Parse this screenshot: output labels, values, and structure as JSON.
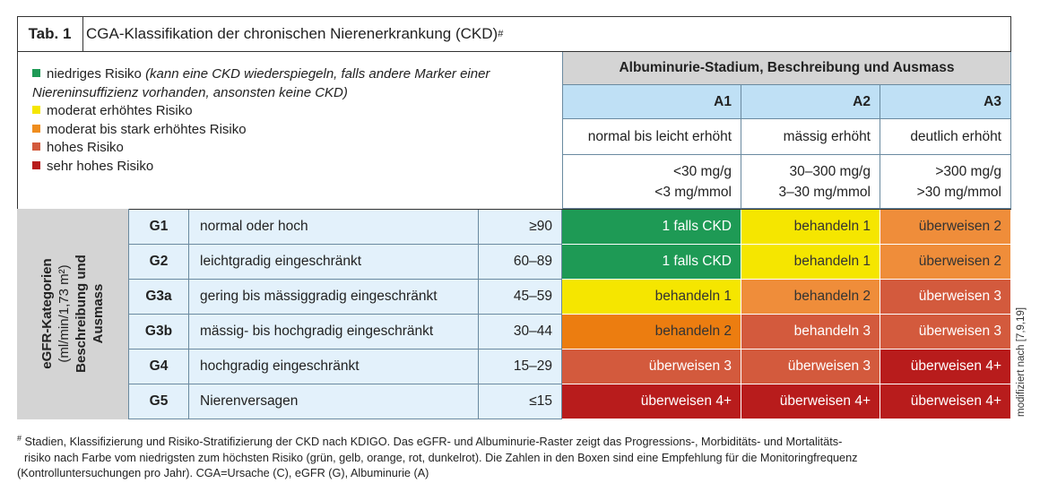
{
  "table": {
    "label": "Tab. 1",
    "title": "CGA-Klassifikation der chronischen Nierenerkrankung (CKD)",
    "title_mark": "#"
  },
  "legend": [
    {
      "text": "niedriges Risiko",
      "note": "(kann eine CKD wiederspiegeln, falls andere Marker einer Niereninsuffizienz vorhanden, ansonsten keine CKD)",
      "color": "#1e9a55"
    },
    {
      "text": "moderat erhöhtes Risiko",
      "note": "",
      "color": "#f5e600"
    },
    {
      "text": "moderat bis stark erhöhtes Risiko",
      "note": "",
      "color": "#ef8d1e"
    },
    {
      "text": "hohes Risiko",
      "note": "",
      "color": "#d35a3d"
    },
    {
      "text": "sehr hohes Risiko",
      "note": "",
      "color": "#b81c1c"
    }
  ],
  "albuminuria": {
    "header": "Albuminurie-Stadium, Beschreibung und Ausmass",
    "columns": [
      {
        "stage": "A1",
        "desc": "normal bis leicht erhöht",
        "range1": "<30 mg/g",
        "range2": "<3 mg/mmol"
      },
      {
        "stage": "A2",
        "desc": "mässig erhöht",
        "range1": "30–300 mg/g",
        "range2": "3–30 mg/mmol"
      },
      {
        "stage": "A3",
        "desc": "deutlich erhöht",
        "range1": ">300 mg/g",
        "range2": ">30 mg/mmol"
      }
    ]
  },
  "egfr": {
    "label_line1": "eGFR-Kategorien",
    "label_line2": "(ml/min/1,73 m²)",
    "label_line3": "Beschreibung und",
    "label_line4": "Ausmass",
    "rows": [
      {
        "stage": "G1",
        "desc": "normal oder hoch",
        "range": "≥90",
        "cells": [
          {
            "text": "1 falls CKD",
            "color": "#1e9a55"
          },
          {
            "text": "behandeln 1",
            "color": "#f5e600"
          },
          {
            "text": "überweisen 2",
            "color": "#ef8d3a"
          }
        ]
      },
      {
        "stage": "G2",
        "desc": "leichtgradig eingeschränkt",
        "range": "60–89",
        "cells": [
          {
            "text": "1 falls CKD",
            "color": "#1e9a55"
          },
          {
            "text": "behandeln 1",
            "color": "#f5e600"
          },
          {
            "text": "überweisen 2",
            "color": "#ef8d3a"
          }
        ]
      },
      {
        "stage": "G3a",
        "desc": "gering bis mässiggradig eingeschränkt",
        "range": "45–59",
        "cells": [
          {
            "text": "behandeln 1",
            "color": "#f5e600"
          },
          {
            "text": "behandeln 2",
            "color": "#ef8d3a"
          },
          {
            "text": "überweisen 3",
            "color": "#d35a3d"
          }
        ]
      },
      {
        "stage": "G3b",
        "desc": "mässig- bis hochgradig eingeschränkt",
        "range": "30–44",
        "cells": [
          {
            "text": "behandeln 2",
            "color": "#ec7d10"
          },
          {
            "text": "behandeln 3",
            "color": "#d35a3d"
          },
          {
            "text": "überweisen 3",
            "color": "#d35a3d"
          }
        ]
      },
      {
        "stage": "G4",
        "desc": "hochgradig eingeschränkt",
        "range": "15–29",
        "cells": [
          {
            "text": "überweisen 3",
            "color": "#d35a3d"
          },
          {
            "text": "überweisen 3",
            "color": "#d35a3d"
          },
          {
            "text": "überweisen 4+",
            "color": "#b81c1c"
          }
        ]
      },
      {
        "stage": "G5",
        "desc": "Nierenversagen",
        "range": "≤15",
        "cells": [
          {
            "text": "überweisen 4+",
            "color": "#b81c1c"
          },
          {
            "text": "überweisen 4+",
            "color": "#b81c1c"
          },
          {
            "text": "überweisen 4+",
            "color": "#b81c1c"
          }
        ]
      }
    ]
  },
  "footnote": {
    "mark": "#",
    "line1": "Stadien, Klassifizierung und Risiko-Stratifizierung der CKD nach KDIGO. Das eGFR- und Albuminurie-Raster zeigt das Progressions-, Morbiditäts- und Mortalitäts-",
    "line2": "risiko nach Farbe vom niedrigsten zum höchsten Risiko (grün, gelb, orange, rot, dunkelrot). Die Zahlen in den Boxen sind eine Empfehlung für die Monitoringfrequenz",
    "line3": "(Kontrolluntersuchungen pro Jahr). CGA=Ursache (C), eGFR (G), Albuminurie (A)"
  },
  "side_note": "modifiziert nach [7,9,19]"
}
